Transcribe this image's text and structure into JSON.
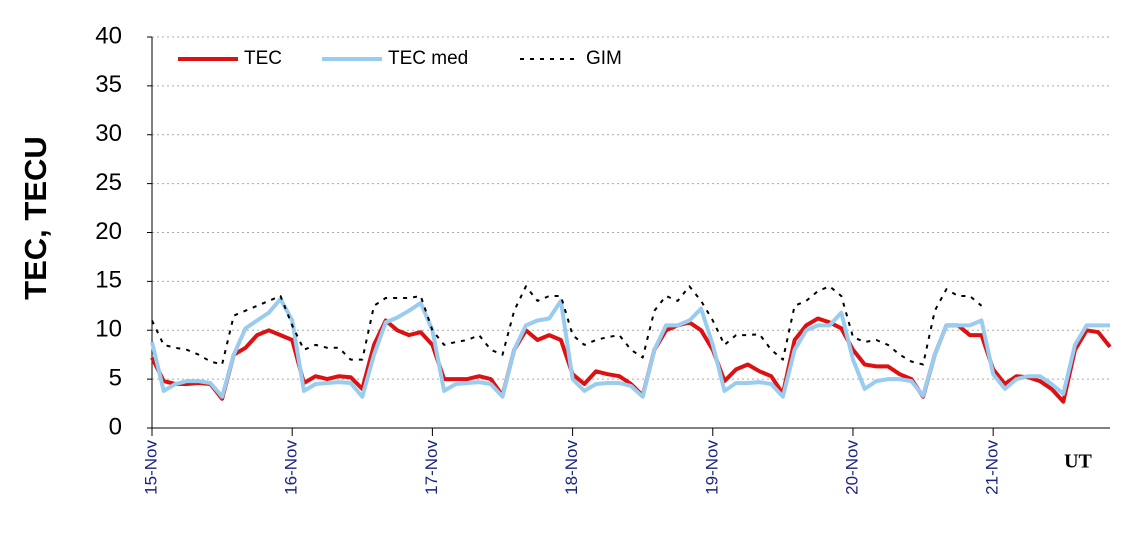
{
  "chart_data": {
    "type": "line",
    "ylabel": "TEC, TECU",
    "xlabel": "UT",
    "x": [
      0,
      2,
      4,
      6,
      8,
      10,
      12,
      14,
      16,
      18,
      20,
      22,
      24,
      26,
      28,
      30,
      32,
      34,
      36,
      38,
      40,
      42,
      44,
      46,
      48,
      50,
      52,
      54,
      56,
      58,
      60,
      62,
      64,
      66,
      68,
      70,
      72,
      74,
      76,
      78,
      80,
      82,
      84,
      86,
      88,
      90,
      92,
      94,
      96,
      98,
      100,
      102,
      104,
      106,
      108,
      110,
      112,
      114,
      116,
      118,
      120,
      122,
      124,
      126,
      128,
      130,
      132,
      134,
      136,
      138,
      140,
      142,
      144,
      146,
      148,
      150,
      152,
      154,
      156,
      158,
      160,
      162,
      164
    ],
    "xlim": [
      0,
      164
    ],
    "xticks": [
      {
        "value": 0,
        "label": "15-Nov"
      },
      {
        "value": 24,
        "label": "16-Nov"
      },
      {
        "value": 48,
        "label": "17-Nov"
      },
      {
        "value": 72,
        "label": "18-Nov"
      },
      {
        "value": 96,
        "label": "19-Nov"
      },
      {
        "value": 120,
        "label": "20-Nov"
      },
      {
        "value": 144,
        "label": "21-Nov"
      }
    ],
    "ylim": [
      0,
      40
    ],
    "yticks": [
      0,
      5,
      10,
      15,
      20,
      25,
      30,
      35,
      40
    ],
    "grid": true,
    "legend": "top-left",
    "series": [
      {
        "name": "TEC",
        "color": "#dd1111",
        "style": "solid",
        "values": [
          7.2,
          4.8,
          4.5,
          4.5,
          4.6,
          4.5,
          3.0,
          7.5,
          8.2,
          9.5,
          10.0,
          9.5,
          9.0,
          4.6,
          5.3,
          5.0,
          5.3,
          5.2,
          4.0,
          8.5,
          11.0,
          10.0,
          9.5,
          9.8,
          8.5,
          5.0,
          5.0,
          5.0,
          5.3,
          5.0,
          3.3,
          8.0,
          10.0,
          9.0,
          9.5,
          9.0,
          5.5,
          4.5,
          5.8,
          5.5,
          5.3,
          4.5,
          3.3,
          8.0,
          10.0,
          10.5,
          10.8,
          10.0,
          8.0,
          4.8,
          6.0,
          6.5,
          5.8,
          5.3,
          3.5,
          9.0,
          10.5,
          11.2,
          10.8,
          10.2,
          8.0,
          6.5,
          6.3,
          6.3,
          5.5,
          5.0,
          3.2,
          7.5,
          10.5,
          10.5,
          9.5,
          9.5,
          6.0,
          4.5,
          5.3,
          5.2,
          4.8,
          4.0,
          2.7,
          8.0,
          10.0,
          9.8,
          8.3
        ]
      },
      {
        "name": "TEC med",
        "color": "#99ccee",
        "style": "solid",
        "values": [
          8.8,
          3.8,
          4.5,
          4.8,
          4.8,
          4.6,
          3.2,
          7.5,
          10.2,
          11.0,
          11.8,
          13.2,
          11.0,
          3.8,
          4.5,
          4.6,
          4.7,
          4.6,
          3.2,
          7.5,
          10.8,
          11.3,
          12.0,
          12.8,
          10.0,
          3.8,
          4.5,
          4.6,
          4.7,
          4.5,
          3.2,
          8.0,
          10.5,
          11.0,
          11.2,
          13.0,
          5.0,
          3.8,
          4.5,
          4.6,
          4.6,
          4.3,
          3.2,
          8.0,
          10.5,
          10.5,
          11.0,
          12.2,
          8.5,
          3.8,
          4.6,
          4.6,
          4.7,
          4.5,
          3.2,
          8.0,
          10.0,
          10.5,
          10.5,
          11.8,
          7.0,
          4.0,
          4.8,
          5.0,
          5.0,
          4.8,
          3.3,
          7.5,
          10.5,
          10.5,
          10.5,
          11.0,
          5.5,
          4.0,
          5.0,
          5.3,
          5.3,
          4.5,
          3.5,
          8.5,
          10.5,
          10.5,
          10.5
        ]
      },
      {
        "name": "GIM",
        "color": "#000000",
        "style": "dashed",
        "values": [
          11.0,
          8.5,
          8.2,
          8.0,
          7.5,
          6.8,
          6.5,
          11.5,
          12.0,
          12.5,
          13.0,
          13.5,
          10.5,
          8.0,
          8.5,
          8.2,
          8.2,
          7.0,
          7.0,
          12.5,
          13.3,
          13.3,
          13.3,
          13.5,
          10.0,
          8.5,
          8.8,
          9.0,
          9.5,
          8.0,
          7.5,
          12.0,
          14.5,
          13.0,
          13.5,
          13.5,
          9.5,
          8.5,
          9.0,
          9.3,
          9.5,
          8.0,
          7.2,
          12.0,
          13.5,
          13.0,
          14.5,
          13.0,
          11.0,
          8.5,
          9.5,
          9.5,
          9.6,
          8.0,
          7.0,
          12.5,
          13.0,
          14.0,
          14.5,
          13.5,
          9.3,
          8.8,
          9.0,
          8.5,
          7.5,
          6.8,
          6.5,
          12.0,
          14.2,
          13.5,
          13.5,
          12.5,
          null,
          null,
          null,
          null,
          null,
          null,
          null,
          null,
          null,
          null,
          null
        ]
      }
    ]
  }
}
